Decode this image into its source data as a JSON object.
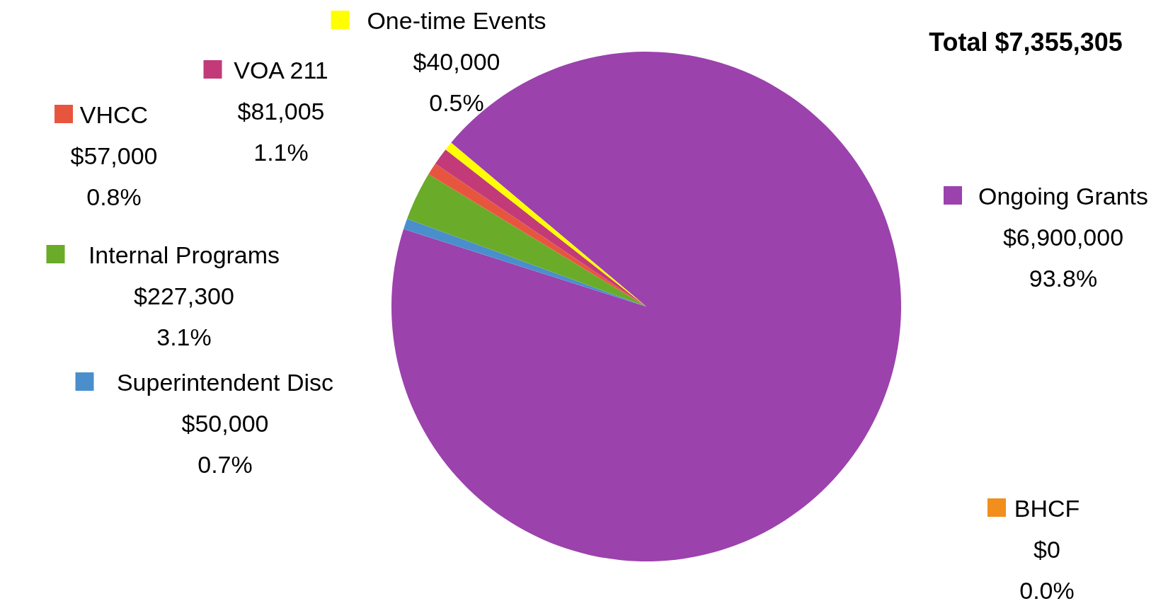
{
  "chart_data": {
    "type": "pie",
    "categories": [
      "Ongoing Grants",
      "BHCF",
      "Superintendent Disc",
      "Internal Programs",
      "VHCC",
      "VOA 211",
      "One-time Events"
    ],
    "values": [
      6900000,
      0,
      50000,
      227300,
      57000,
      81005,
      40000
    ],
    "colors": [
      "#9b42ad",
      "#f28e1c",
      "#4a8fcc",
      "#6aab2a",
      "#e8553f",
      "#c23b78",
      "#ffff00"
    ],
    "value_labels": [
      "$6,900,000\n93.8%",
      "$0\n0.0%",
      "$50,000\n0.7%",
      "$227,300\n3.1%",
      "$57,000\n0.8%",
      "$81,005\n1.1%",
      "$40,000\n0.5%"
    ],
    "annotations": [
      "Total $7,355,305"
    ],
    "legend": "left"
  }
}
